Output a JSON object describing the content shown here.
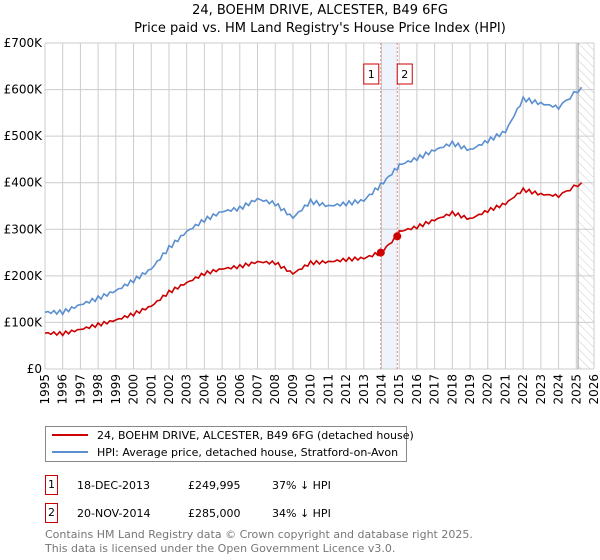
{
  "chart_data": {
    "type": "line",
    "title": "24, BOEHM DRIVE, ALCESTER, B49 6FG",
    "subtitle": "Price paid vs. HM Land Registry's House Price Index (HPI)",
    "xlim": [
      1995,
      2026
    ],
    "ylim": [
      0,
      700000
    ],
    "y_ticks": [
      0,
      100000,
      200000,
      300000,
      400000,
      500000,
      600000,
      700000
    ],
    "y_tick_labels": [
      "£0",
      "£100K",
      "£200K",
      "£300K",
      "£400K",
      "£500K",
      "£600K",
      "£700K"
    ],
    "x_ticks": [
      1995,
      1996,
      1997,
      1998,
      1999,
      2000,
      2001,
      2002,
      2003,
      2004,
      2005,
      2006,
      2007,
      2008,
      2009,
      2010,
      2011,
      2012,
      2013,
      2014,
      2015,
      2016,
      2017,
      2018,
      2019,
      2020,
      2021,
      2022,
      2023,
      2024,
      2025,
      2026
    ],
    "grid": true,
    "series": [
      {
        "name": "24, BOEHM DRIVE, ALCESTER, B49 6FG (detached house)",
        "color": "#cc0000",
        "x": [
          1995,
          1996,
          1997,
          1998,
          1999,
          2000,
          2001,
          2002,
          2003,
          2004,
          2005,
          2006,
          2007,
          2008,
          2009,
          2010,
          2011,
          2012,
          2013,
          2013.96,
          2014.89,
          2015,
          2016,
          2017,
          2018,
          2019,
          2020,
          2021,
          2022,
          2023,
          2024,
          2025.3
        ],
        "y": [
          77000,
          76000,
          85000,
          95000,
          105000,
          118000,
          135000,
          165000,
          185000,
          205000,
          215000,
          220000,
          230000,
          228000,
          205000,
          228000,
          230000,
          235000,
          238000,
          249995,
          285000,
          295000,
          305000,
          320000,
          335000,
          322000,
          340000,
          355000,
          385000,
          375000,
          372000,
          400000
        ]
      },
      {
        "name": "HPI: Average price, detached house, Stratford-on-Avon",
        "color": "#5b8fd0",
        "x": [
          1995,
          1996,
          1997,
          1998,
          1999,
          2000,
          2001,
          2002,
          2003,
          2004,
          2005,
          2006,
          2007,
          2008,
          2009,
          2010,
          2011,
          2012,
          2013,
          2013.96,
          2014.89,
          2015,
          2016,
          2017,
          2018,
          2019,
          2020,
          2021,
          2022,
          2023,
          2024,
          2025.3
        ],
        "y": [
          122000,
          122000,
          138000,
          152000,
          168000,
          190000,
          215000,
          260000,
          295000,
          320000,
          338000,
          345000,
          365000,
          355000,
          325000,
          360000,
          350000,
          355000,
          362000,
          395000,
          432000,
          438000,
          452000,
          470000,
          485000,
          470000,
          490000,
          510000,
          580000,
          570000,
          562000,
          605000
        ]
      }
    ],
    "sales": [
      {
        "label": "1",
        "date": "18-DEC-2013",
        "x": 2013.96,
        "price": "£249,995",
        "value": 249995,
        "hpi": "37% ↓ HPI"
      },
      {
        "label": "2",
        "date": "20-NOV-2014",
        "x": 2014.89,
        "price": "£285,000",
        "value": 285000,
        "hpi": "34% ↓ HPI"
      }
    ],
    "forecast_start": 2025.1,
    "legend_placement": "below"
  },
  "footer": {
    "line1": "Contains HM Land Registry data © Crown copyright and database right 2025.",
    "line2": "This data is licensed under the Open Government Licence v3.0."
  }
}
